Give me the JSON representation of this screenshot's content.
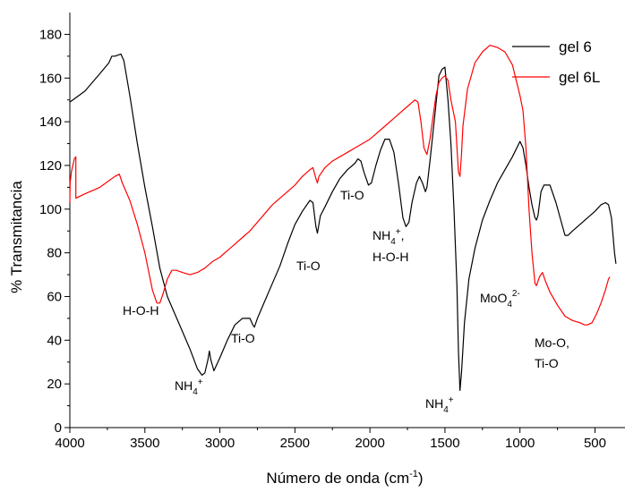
{
  "chart_data": {
    "type": "line",
    "title": "",
    "xlabel": "Número de onda (cm-1)",
    "ylabel": "% Transmitancia",
    "xlim": [
      4000,
      300
    ],
    "ylim": [
      0,
      190
    ],
    "x_reversed": true,
    "x_ticks": [
      4000,
      3500,
      3000,
      2500,
      2000,
      1500,
      1000,
      500
    ],
    "y_ticks": [
      0,
      20,
      40,
      60,
      80,
      100,
      120,
      140,
      160,
      180
    ],
    "grid": false,
    "legend_position": "top-right",
    "colors": {
      "gel6": "#000000",
      "gel6L": "#ff0000"
    },
    "series": [
      {
        "name": "gel 6",
        "color": "#000000",
        "points": [
          [
            4000,
            149
          ],
          [
            3900,
            154
          ],
          [
            3800,
            162
          ],
          [
            3740,
            167
          ],
          [
            3720,
            170
          ],
          [
            3700,
            170
          ],
          [
            3660,
            171
          ],
          [
            3640,
            168
          ],
          [
            3600,
            152
          ],
          [
            3550,
            130
          ],
          [
            3500,
            110
          ],
          [
            3450,
            92
          ],
          [
            3400,
            73
          ],
          [
            3350,
            60
          ],
          [
            3300,
            52
          ],
          [
            3250,
            44
          ],
          [
            3200,
            36
          ],
          [
            3150,
            27
          ],
          [
            3120,
            24
          ],
          [
            3100,
            25
          ],
          [
            3080,
            31
          ],
          [
            3070,
            35
          ],
          [
            3060,
            31
          ],
          [
            3040,
            26
          ],
          [
            3000,
            32
          ],
          [
            2950,
            40
          ],
          [
            2900,
            47
          ],
          [
            2850,
            50
          ],
          [
            2800,
            50
          ],
          [
            2780,
            47
          ],
          [
            2770,
            46
          ],
          [
            2750,
            50
          ],
          [
            2700,
            58
          ],
          [
            2650,
            66
          ],
          [
            2600,
            74
          ],
          [
            2550,
            84
          ],
          [
            2500,
            93
          ],
          [
            2450,
            99
          ],
          [
            2400,
            104
          ],
          [
            2380,
            103
          ],
          [
            2360,
            92
          ],
          [
            2350,
            89
          ],
          [
            2330,
            97
          ],
          [
            2300,
            101
          ],
          [
            2250,
            108
          ],
          [
            2200,
            114
          ],
          [
            2150,
            118
          ],
          [
            2100,
            121
          ],
          [
            2080,
            123
          ],
          [
            2060,
            122
          ],
          [
            2040,
            117
          ],
          [
            2010,
            111
          ],
          [
            1990,
            112
          ],
          [
            1960,
            120
          ],
          [
            1930,
            127
          ],
          [
            1900,
            132
          ],
          [
            1870,
            132
          ],
          [
            1840,
            126
          ],
          [
            1810,
            112
          ],
          [
            1780,
            96
          ],
          [
            1760,
            92
          ],
          [
            1740,
            94
          ],
          [
            1720,
            103
          ],
          [
            1690,
            112
          ],
          [
            1670,
            115
          ],
          [
            1650,
            112
          ],
          [
            1630,
            108
          ],
          [
            1620,
            110
          ],
          [
            1600,
            122
          ],
          [
            1560,
            148
          ],
          [
            1540,
            161
          ],
          [
            1520,
            164
          ],
          [
            1500,
            165
          ],
          [
            1480,
            150
          ],
          [
            1460,
            130
          ],
          [
            1440,
            100
          ],
          [
            1420,
            65
          ],
          [
            1410,
            35
          ],
          [
            1400,
            17
          ],
          [
            1390,
            25
          ],
          [
            1370,
            48
          ],
          [
            1340,
            68
          ],
          [
            1300,
            82
          ],
          [
            1250,
            95
          ],
          [
            1200,
            104
          ],
          [
            1150,
            112
          ],
          [
            1100,
            118
          ],
          [
            1050,
            124
          ],
          [
            1000,
            131
          ],
          [
            980,
            128
          ],
          [
            960,
            120
          ],
          [
            940,
            110
          ],
          [
            920,
            102
          ],
          [
            900,
            96
          ],
          [
            890,
            95
          ],
          [
            880,
            97
          ],
          [
            860,
            108
          ],
          [
            840,
            111
          ],
          [
            800,
            111
          ],
          [
            760,
            103
          ],
          [
            720,
            93
          ],
          [
            700,
            88
          ],
          [
            680,
            88
          ],
          [
            650,
            90
          ],
          [
            600,
            93
          ],
          [
            550,
            96
          ],
          [
            500,
            99
          ],
          [
            460,
            102
          ],
          [
            430,
            103
          ],
          [
            410,
            102
          ],
          [
            390,
            96
          ],
          [
            380,
            88
          ],
          [
            370,
            80
          ],
          [
            360,
            75
          ]
        ]
      },
      {
        "name": "gel 6L",
        "color": "#ff0000",
        "points": [
          [
            4000,
            103
          ],
          [
            3998,
            112
          ],
          [
            3990,
            117
          ],
          [
            3970,
            123
          ],
          [
            3960,
            124
          ],
          [
            3960,
            105
          ],
          [
            3900,
            107
          ],
          [
            3800,
            110
          ],
          [
            3700,
            115
          ],
          [
            3670,
            116
          ],
          [
            3650,
            112
          ],
          [
            3600,
            104
          ],
          [
            3550,
            93
          ],
          [
            3500,
            80
          ],
          [
            3450,
            63
          ],
          [
            3420,
            57
          ],
          [
            3400,
            57
          ],
          [
            3380,
            61
          ],
          [
            3350,
            68
          ],
          [
            3320,
            72
          ],
          [
            3290,
            72
          ],
          [
            3250,
            71
          ],
          [
            3200,
            70
          ],
          [
            3150,
            71
          ],
          [
            3100,
            73
          ],
          [
            3050,
            76
          ],
          [
            3000,
            78
          ],
          [
            2950,
            81
          ],
          [
            2900,
            84
          ],
          [
            2850,
            87
          ],
          [
            2800,
            90
          ],
          [
            2750,
            94
          ],
          [
            2700,
            98
          ],
          [
            2650,
            102
          ],
          [
            2600,
            105
          ],
          [
            2550,
            108
          ],
          [
            2500,
            111
          ],
          [
            2450,
            115
          ],
          [
            2400,
            118
          ],
          [
            2380,
            119
          ],
          [
            2360,
            114
          ],
          [
            2350,
            112
          ],
          [
            2340,
            115
          ],
          [
            2300,
            119
          ],
          [
            2250,
            122
          ],
          [
            2200,
            124
          ],
          [
            2150,
            126
          ],
          [
            2100,
            128
          ],
          [
            2050,
            130
          ],
          [
            2000,
            132
          ],
          [
            1950,
            135
          ],
          [
            1900,
            138
          ],
          [
            1850,
            141
          ],
          [
            1800,
            144
          ],
          [
            1750,
            147
          ],
          [
            1700,
            150
          ],
          [
            1680,
            149
          ],
          [
            1660,
            140
          ],
          [
            1640,
            128
          ],
          [
            1620,
            125
          ],
          [
            1600,
            132
          ],
          [
            1580,
            142
          ],
          [
            1560,
            152
          ],
          [
            1540,
            158
          ],
          [
            1520,
            160
          ],
          [
            1500,
            161
          ],
          [
            1480,
            159
          ],
          [
            1460,
            150
          ],
          [
            1430,
            140
          ],
          [
            1410,
            117
          ],
          [
            1400,
            115
          ],
          [
            1390,
            125
          ],
          [
            1380,
            138
          ],
          [
            1350,
            155
          ],
          [
            1300,
            167
          ],
          [
            1250,
            172
          ],
          [
            1200,
            175
          ],
          [
            1150,
            174
          ],
          [
            1100,
            172
          ],
          [
            1050,
            166
          ],
          [
            1000,
            152
          ],
          [
            980,
            145
          ],
          [
            960,
            128
          ],
          [
            940,
            100
          ],
          [
            920,
            80
          ],
          [
            900,
            66
          ],
          [
            890,
            65
          ],
          [
            870,
            69
          ],
          [
            850,
            71
          ],
          [
            830,
            67
          ],
          [
            800,
            62
          ],
          [
            750,
            56
          ],
          [
            700,
            51
          ],
          [
            650,
            49
          ],
          [
            600,
            48
          ],
          [
            570,
            47
          ],
          [
            550,
            47
          ],
          [
            520,
            48
          ],
          [
            490,
            52
          ],
          [
            460,
            57
          ],
          [
            430,
            63
          ],
          [
            410,
            68
          ],
          [
            400,
            69
          ]
        ]
      }
    ],
    "annotations": [
      {
        "id": "h-o-h",
        "text": "H-O-H",
        "x": 3530,
        "y": 50
      },
      {
        "id": "nh4-a",
        "text": "NH4+",
        "x": 3240,
        "y": 14
      },
      {
        "id": "ti-o-a",
        "text": "Ti-O",
        "x": 2870,
        "y": 38
      },
      {
        "id": "ti-o-b",
        "text": "Ti-O",
        "x": 2420,
        "y": 77
      },
      {
        "id": "ti-o-c",
        "text": "Ti-O",
        "x": 2050,
        "y": 100
      },
      {
        "id": "nh4-b-1",
        "text": "NH4+,",
        "x": 1850,
        "y": 83
      },
      {
        "id": "nh4-b-2",
        "text": "H-O-H",
        "x": 1850,
        "y": 71
      },
      {
        "id": "nh4-c",
        "text": "NH4+",
        "x": 1470,
        "y": 8
      },
      {
        "id": "moo4",
        "text": "MoO42-",
        "x": 1090,
        "y": 56
      },
      {
        "id": "mo-o-1",
        "text": "Mo-O,",
        "x": 650,
        "y": 34
      },
      {
        "id": "mo-o-2",
        "text": "Ti-O",
        "x": 650,
        "y": 22
      }
    ]
  },
  "axis_text": {
    "xlabel_main": "Número de onda (cm",
    "xlabel_sup": "-1",
    "xlabel_tail": ")",
    "ylabel": "% Transmitancia"
  },
  "legend": {
    "items": [
      {
        "label": "gel 6",
        "color": "#000000"
      },
      {
        "label": "gel 6L",
        "color": "#ff0000"
      }
    ]
  },
  "labels": {
    "nh4_base": "NH",
    "nh4_sub": "4",
    "nh4_sup": "+",
    "nh4_sup_comma": "+",
    "nh4_comma": ",",
    "hoh": "H-O-H",
    "tio": "Ti-O",
    "moo_base": "MoO",
    "moo_sub": "4",
    "moo_sup": "2-",
    "moo2_line1": "Mo-O,",
    "moo2_line2": "Ti-O"
  }
}
